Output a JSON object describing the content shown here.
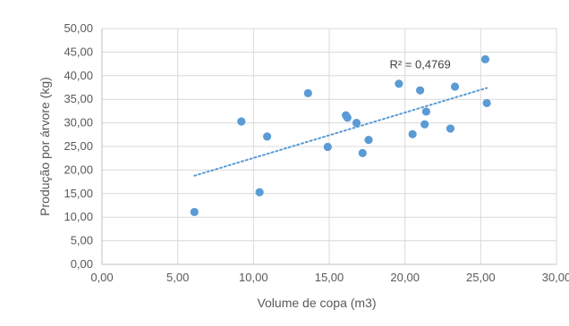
{
  "chart_data": {
    "type": "scatter",
    "xlabel": "Volume de copa (m3)",
    "ylabel": "Produção por árvore (kg)",
    "xlim": [
      0,
      30
    ],
    "ylim": [
      0,
      50
    ],
    "x_ticks": [
      0,
      5,
      10,
      15,
      20,
      25,
      30
    ],
    "y_ticks": [
      0,
      5,
      10,
      15,
      20,
      25,
      30,
      35,
      40,
      45,
      50
    ],
    "x_tick_labels": [
      "0,00",
      "5,00",
      "10,00",
      "15,00",
      "20,00",
      "25,00",
      "30,00"
    ],
    "y_tick_labels": [
      "0,00",
      "5,00",
      "10,00",
      "15,00",
      "20,00",
      "25,00",
      "30,00",
      "35,00",
      "40,00",
      "45,00",
      "50,00"
    ],
    "grid": true,
    "marker_color": "#5B9BD5",
    "trendline": {
      "type": "linear",
      "x_range": [
        6.1,
        25.4
      ],
      "y_range": [
        18.8,
        37.4
      ],
      "r2_label": "R² = 0,4769",
      "color": "#5B9BD5"
    },
    "points": [
      {
        "x": 6.1,
        "y": 11.1
      },
      {
        "x": 9.2,
        "y": 30.3
      },
      {
        "x": 10.4,
        "y": 15.3
      },
      {
        "x": 10.9,
        "y": 27.1
      },
      {
        "x": 13.6,
        "y": 36.3
      },
      {
        "x": 14.9,
        "y": 24.9
      },
      {
        "x": 16.1,
        "y": 31.6
      },
      {
        "x": 16.2,
        "y": 31.1
      },
      {
        "x": 16.8,
        "y": 30.0
      },
      {
        "x": 17.2,
        "y": 23.6
      },
      {
        "x": 17.6,
        "y": 26.4
      },
      {
        "x": 19.6,
        "y": 38.3
      },
      {
        "x": 20.5,
        "y": 27.6
      },
      {
        "x": 21.0,
        "y": 36.9
      },
      {
        "x": 21.3,
        "y": 29.7
      },
      {
        "x": 21.4,
        "y": 32.4
      },
      {
        "x": 23.0,
        "y": 28.8
      },
      {
        "x": 23.3,
        "y": 37.7
      },
      {
        "x": 25.3,
        "y": 43.5
      },
      {
        "x": 25.4,
        "y": 34.2
      }
    ]
  }
}
